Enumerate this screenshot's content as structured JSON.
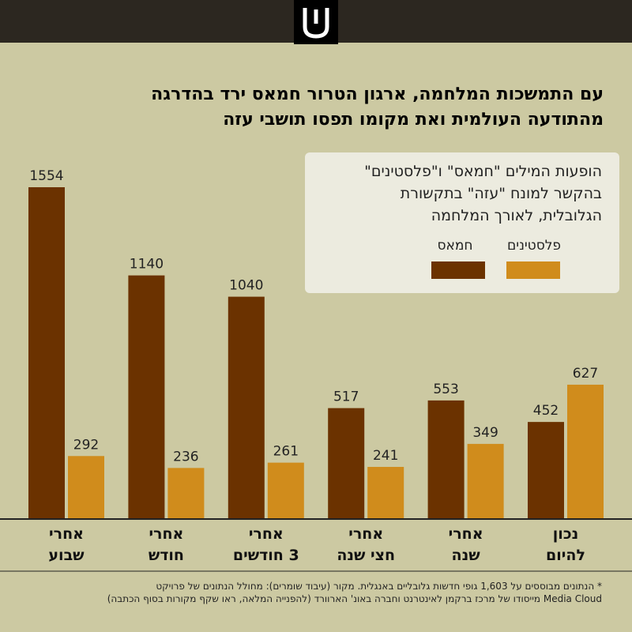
{
  "header": {
    "logo_icon": "hebrew-shin-logo-icon"
  },
  "title_lines": [
    "עם התמשכות המלחמה, ארגון הטרור חמאס ירד בהדרגה",
    "מהתודעה העולמית ואת מקומו תפסו תושבי עזה"
  ],
  "legend": {
    "description_lines": [
      "הופעות המילים \"חמאס\" ו\"פלסטינים\"",
      "בהקשר למונח \"עזה\" בתקשורת",
      "הגלובלית, לאורך המלחמה"
    ]
  },
  "chart_data": {
    "type": "bar",
    "categories": [
      [
        "אחרי",
        "שבוע"
      ],
      [
        "אחרי",
        "חודש"
      ],
      [
        "אחרי",
        "3 חודשים"
      ],
      [
        "אחרי",
        "חצי שנה"
      ],
      [
        "אחרי",
        "שנה"
      ],
      [
        "נכון",
        "להיום"
      ]
    ],
    "series": [
      {
        "name": "חמאס",
        "color": "#6b3200",
        "values": [
          1554,
          1140,
          1040,
          517,
          553,
          452
        ]
      },
      {
        "name": "פלסטינים",
        "color": "#d08c1c",
        "values": [
          292,
          236,
          261,
          241,
          349,
          627
        ]
      }
    ],
    "ylim": [
      0,
      1700
    ],
    "grid": false,
    "legend_position": "top-right"
  },
  "footnote_lines": [
    "* הנתונים מבוססים על 1,603 גופי חדשות גלובליים באנגלית. מקור (עיבוד שומרים): מחולל הנתונים של פרויקט",
    "Media Cloud מייסודו של מרכז ברקמן לאינטרנט וחברה באונ' הארוורד (להפנייה המלאה, ראו שקף מקורות בסוף הכתבה)"
  ]
}
